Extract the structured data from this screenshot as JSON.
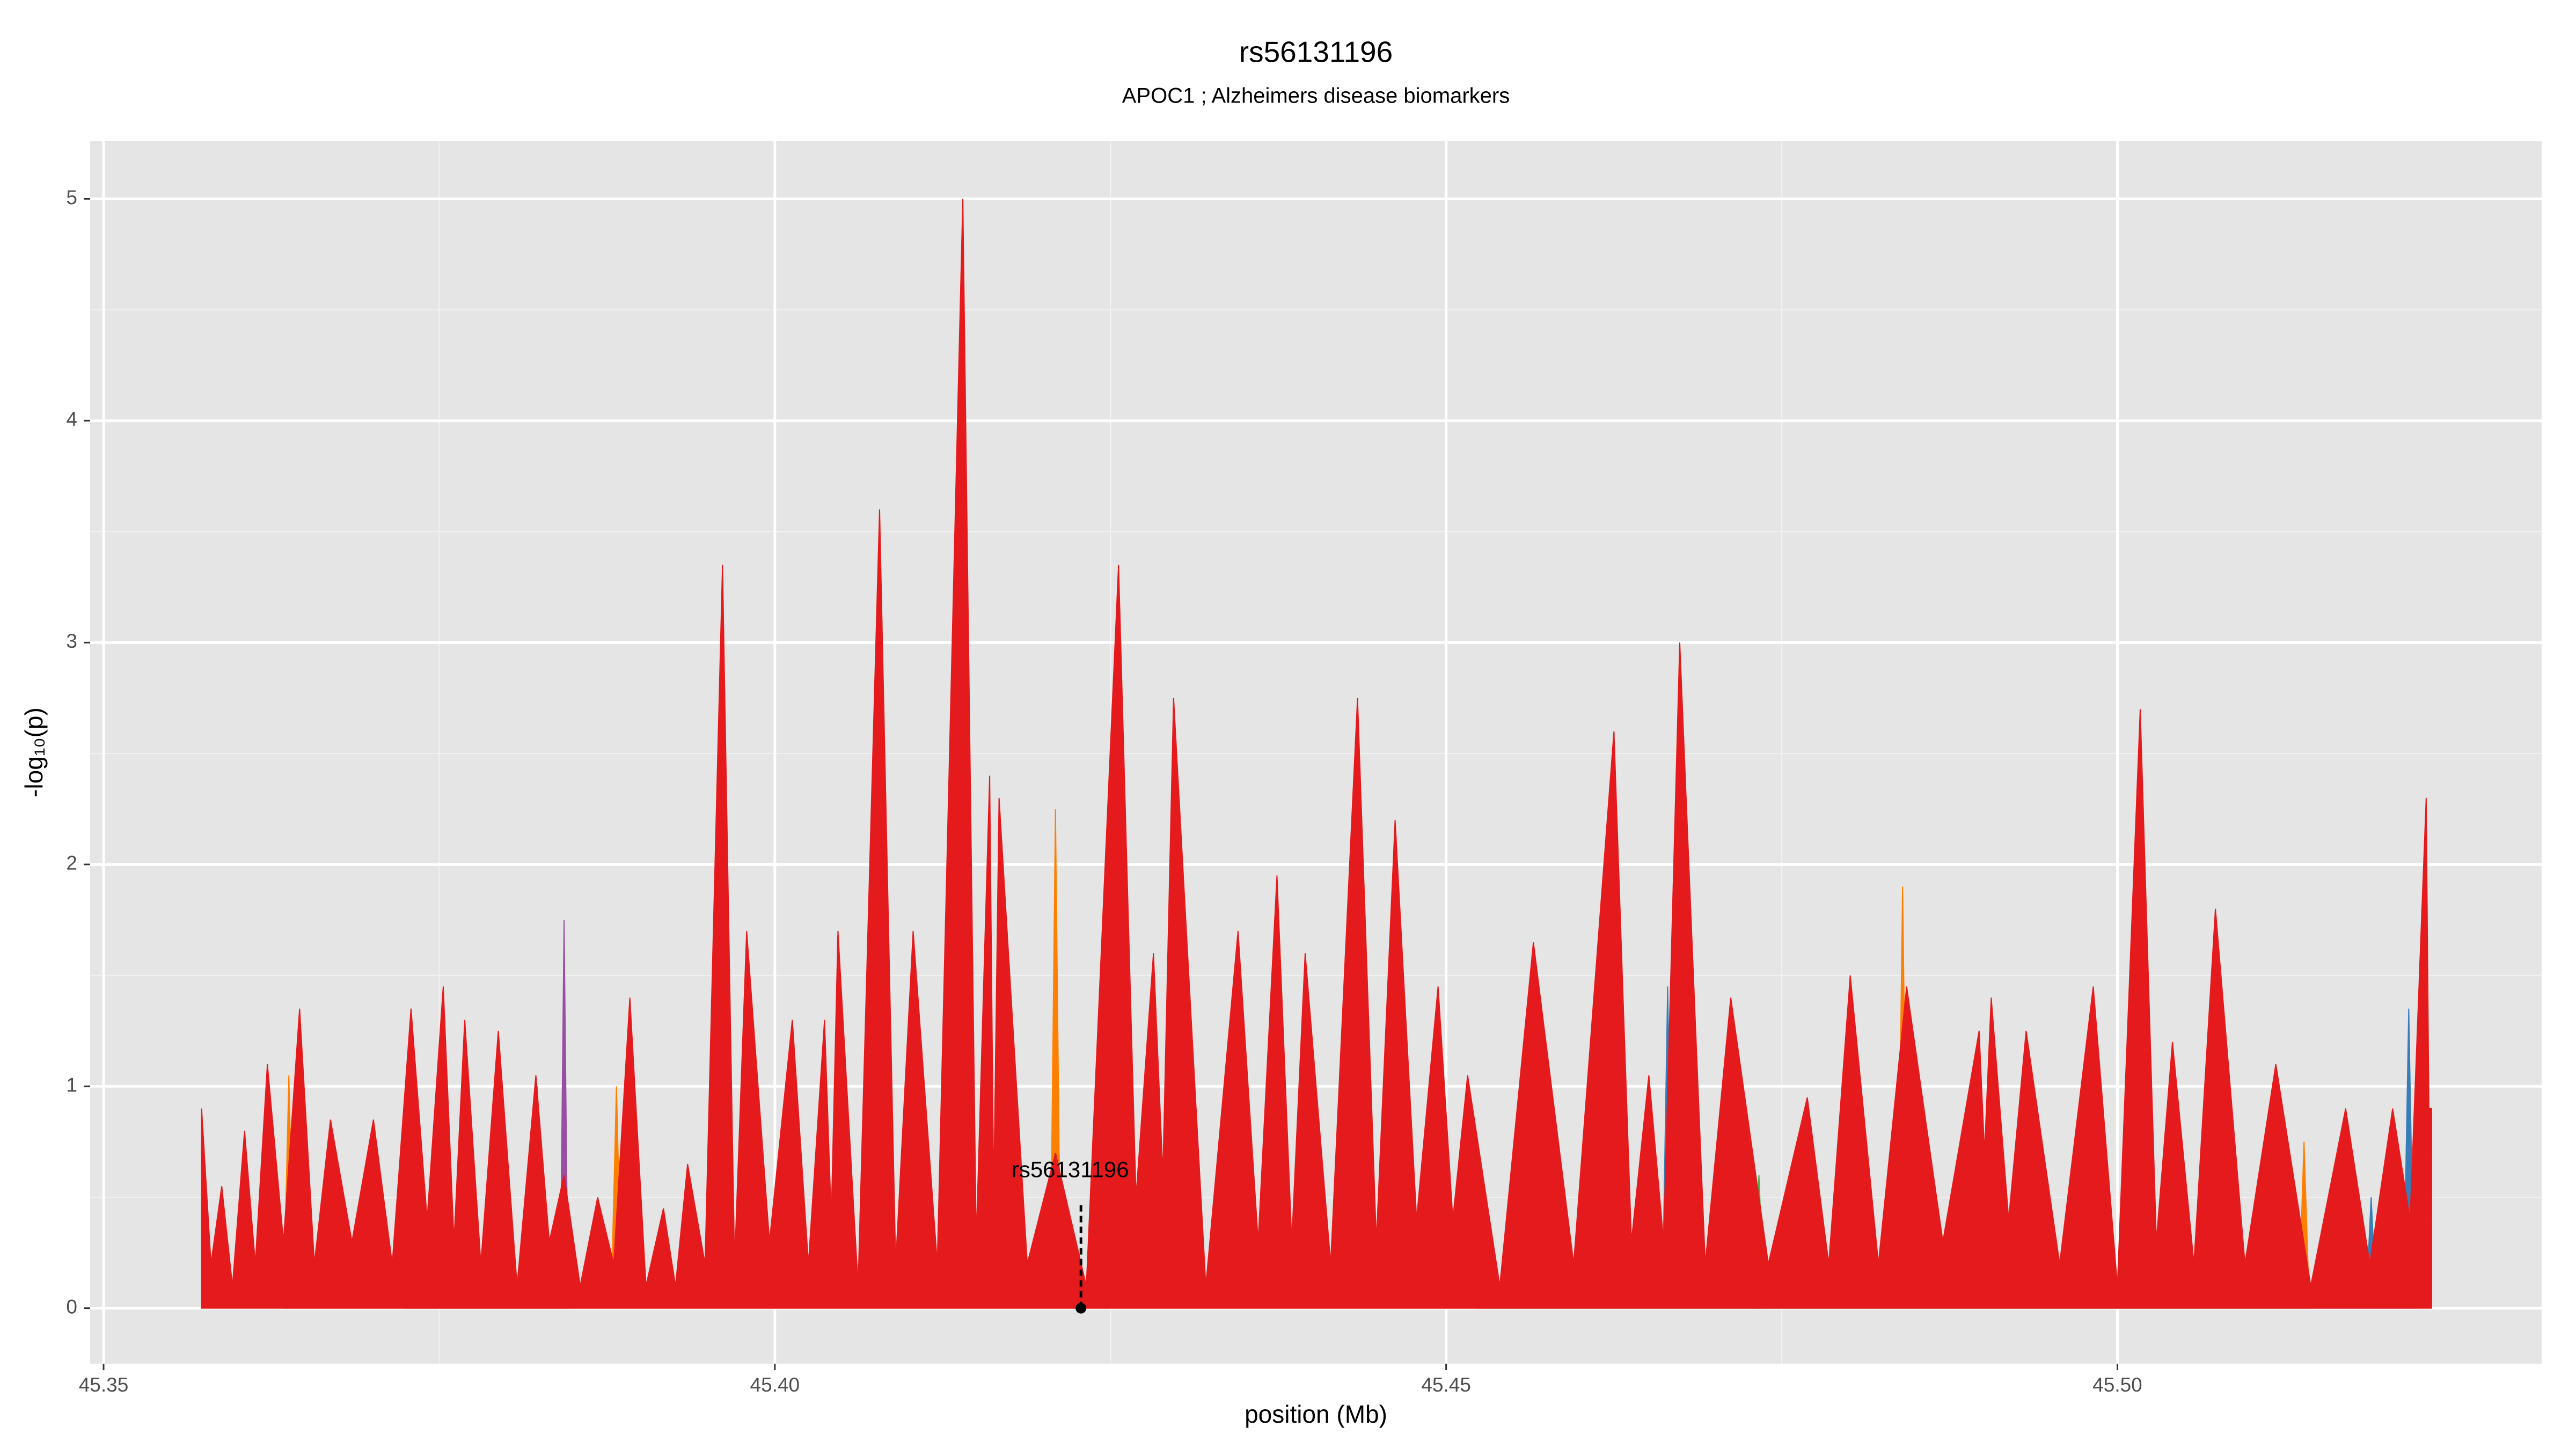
{
  "chart_data": {
    "type": "area",
    "title": "rs56131196",
    "subtitle": "APOC1 ; Alzheimers disease biomarkers",
    "x_label": "position (Mb)",
    "y_label": "-log₁₀(p)",
    "xlim": [
      45.349,
      45.5316
    ],
    "ylim": [
      -0.25,
      5.26
    ],
    "xticks": [
      45.35,
      {
        "value": 45.4,
        "label": "45.40"
      },
      45.45,
      {
        "value": 45.5,
        "label": "45.50"
      }
    ],
    "yticks": [
      0,
      1,
      2,
      3,
      4,
      5
    ],
    "grid": true,
    "series": [
      {
        "color": "#984ea3",
        "x": [
          45.3725,
          45.3729,
          45.3733,
          45.384,
          45.3843,
          45.3846
        ],
        "values": [
          0,
          1.35,
          0,
          0,
          1.75,
          0
        ]
      },
      {
        "color": "#377eb8",
        "x": [
          45.4523,
          45.4527,
          45.4531,
          45.4661,
          45.4665,
          45.4669,
          45.5185,
          45.5189,
          45.5193,
          45.5213,
          45.5217,
          45.5221
        ],
        "values": [
          0,
          0.4,
          0,
          0,
          1.45,
          0,
          0,
          0.5,
          0,
          0,
          1.35,
          0
        ]
      },
      {
        "color": "#4daf4a",
        "x": [
          45.4729,
          45.4733,
          45.4737
        ],
        "values": [
          0,
          0.6,
          0
        ]
      },
      {
        "color": "#ff7f00",
        "x": [
          45.3634,
          45.3638,
          45.3642,
          45.3819,
          45.3823,
          45.3827,
          45.3878,
          45.3882,
          45.3886,
          45.4205,
          45.4209,
          45.4213,
          45.4239,
          45.4243,
          45.4247,
          45.4836,
          45.484,
          45.4844,
          45.5118,
          45.5122,
          45.5126,
          45.5135,
          45.5139,
          45.5143
        ],
        "values": [
          0,
          1.05,
          0,
          0,
          1.0,
          0,
          0,
          1.0,
          0,
          0,
          2.25,
          0,
          0,
          0.8,
          0,
          0,
          1.9,
          0,
          0,
          0.8,
          0,
          0,
          0.75,
          0
        ]
      },
      {
        "color": "#e41a1c",
        "x": [
          45.3573,
          45.3573,
          45.358,
          45.3588,
          45.3596,
          45.3605,
          45.3613,
          45.3622,
          45.3634,
          45.3646,
          45.3657,
          45.3669,
          45.3685,
          45.3701,
          45.3715,
          45.3729,
          45.3741,
          45.3753,
          45.3761,
          45.3769,
          45.3781,
          45.3794,
          45.3808,
          45.3822,
          45.3832,
          45.3843,
          45.3855,
          45.3868,
          45.388,
          45.3892,
          45.3904,
          45.3917,
          45.3926,
          45.3935,
          45.3948,
          45.3961,
          45.397,
          45.3979,
          45.3996,
          45.4013,
          45.4025,
          45.4037,
          45.4042,
          45.4047,
          45.4062,
          45.4078,
          45.409,
          45.4103,
          45.4121,
          45.414,
          45.415,
          45.416,
          45.4163,
          45.4167,
          45.4188,
          45.4209,
          45.4232,
          45.4256,
          45.4269,
          45.4282,
          45.4289,
          45.4297,
          45.4321,
          45.4345,
          45.436,
          45.4374,
          45.4385,
          45.4395,
          45.4414,
          45.4434,
          45.4448,
          45.4462,
          45.4478,
          45.4494,
          45.4505,
          45.4516,
          45.454,
          45.4565,
          45.4595,
          45.4625,
          45.4638,
          45.4651,
          45.4662,
          45.4674,
          45.4693,
          45.4712,
          45.474,
          45.4769,
          45.4785,
          45.4801,
          45.4822,
          45.4843,
          45.487,
          45.4897,
          45.4901,
          45.4906,
          45.4919,
          45.4932,
          45.4957,
          45.4982,
          45.5,
          45.5017,
          45.5029,
          45.5041,
          45.5057,
          45.5073,
          45.5095,
          45.5118,
          45.5144,
          45.517,
          45.5188,
          45.5205,
          45.5218,
          45.523,
          45.5232,
          45.5234,
          45.5234
        ],
        "values": [
          0,
          0.9,
          0.2,
          0.55,
          0.1,
          0.8,
          0.2,
          1.1,
          0.3,
          1.35,
          0.2,
          0.85,
          0.3,
          0.85,
          0.2,
          1.35,
          0.4,
          1.45,
          0.3,
          1.3,
          0.2,
          1.25,
          0.1,
          1.05,
          0.3,
          0.6,
          0.1,
          0.5,
          0.2,
          1.4,
          0.1,
          0.45,
          0.1,
          0.65,
          0.2,
          3.35,
          0.2,
          1.7,
          0.3,
          1.3,
          0.2,
          1.3,
          0.4,
          1.7,
          0.1,
          3.6,
          0.2,
          1.7,
          0.2,
          5.0,
          0.3,
          2.4,
          0.5,
          2.3,
          0.2,
          0.7,
          0.1,
          3.35,
          0.5,
          1.6,
          0.6,
          2.75,
          0.1,
          1.7,
          0.3,
          1.95,
          0.3,
          1.6,
          0.2,
          2.75,
          0.3,
          2.2,
          0.4,
          1.45,
          0.4,
          1.05,
          0.1,
          1.65,
          0.2,
          2.6,
          0.3,
          1.05,
          0.3,
          3.0,
          0.2,
          1.4,
          0.2,
          0.95,
          0.2,
          1.5,
          0.2,
          1.45,
          0.3,
          1.25,
          0.7,
          1.4,
          0.4,
          1.25,
          0.2,
          1.45,
          0.1,
          2.7,
          0.3,
          1.2,
          0.2,
          1.8,
          0.2,
          1.1,
          0.1,
          0.9,
          0.2,
          0.9,
          0.4,
          2.3,
          0.9,
          0.9,
          0
        ]
      }
    ],
    "annotation": {
      "label": "rs56131196",
      "x": 45.4228,
      "y": 0
    }
  }
}
